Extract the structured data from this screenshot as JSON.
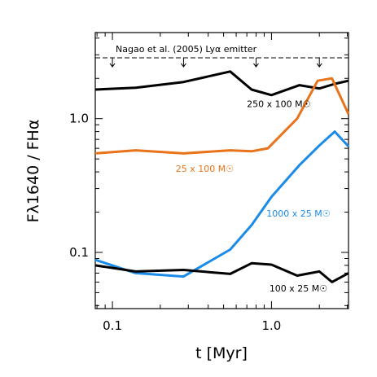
{
  "chart_data": {
    "type": "line",
    "xlabel": "t [Myr]",
    "ylabel": "Fλ1640 / FHα",
    "x_scale": "log",
    "y_scale": "log",
    "xlim": [
      0.078,
      3.05
    ],
    "ylim": [
      0.038,
      4.4
    ],
    "x_ticks": [
      {
        "value": 0.1,
        "label": "0.1"
      },
      {
        "value": 1.0,
        "label": "1.0"
      }
    ],
    "y_ticks": [
      {
        "value": 0.1,
        "label": "0.1"
      },
      {
        "value": 1.0,
        "label": "1.0"
      }
    ],
    "grid": false,
    "series": [
      {
        "name": "250 x 100 M☉",
        "color": "#000000",
        "x": [
          0.078,
          0.14,
          0.28,
          0.55,
          0.75,
          1.0,
          1.5,
          2.0,
          2.5,
          3.05
        ],
        "y": [
          1.65,
          1.7,
          1.88,
          2.25,
          1.65,
          1.5,
          1.78,
          1.68,
          1.82,
          1.92
        ]
      },
      {
        "name": "25 x 100 M☉",
        "color": "#e8731a",
        "x": [
          0.078,
          0.14,
          0.28,
          0.55,
          0.75,
          0.95,
          1.45,
          1.95,
          2.4,
          3.05
        ],
        "y": [
          0.55,
          0.58,
          0.55,
          0.58,
          0.57,
          0.6,
          1.0,
          1.92,
          2.0,
          1.08
        ]
      },
      {
        "name": "1000 x 25 M☉",
        "color": "#1a8ce8",
        "x": [
          0.078,
          0.14,
          0.28,
          0.55,
          0.75,
          1.0,
          1.5,
          2.0,
          2.5,
          3.05
        ],
        "y": [
          0.088,
          0.07,
          0.066,
          0.105,
          0.16,
          0.26,
          0.45,
          0.63,
          0.8,
          0.62
        ]
      },
      {
        "name": "100 x 25 M☉",
        "color": "#000000",
        "x": [
          0.078,
          0.14,
          0.28,
          0.55,
          0.75,
          1.0,
          1.45,
          2.0,
          2.4,
          3.05
        ],
        "y": [
          0.08,
          0.072,
          0.074,
          0.069,
          0.083,
          0.081,
          0.067,
          0.072,
          0.06,
          0.07
        ]
      }
    ],
    "annotations": {
      "limit_label": "Nagao et al. (2005) Lyα emitter",
      "limit_value": 2.85,
      "limit_arrows_x": [
        0.1,
        0.28,
        0.8,
        2.0
      ],
      "labels": [
        {
          "text": "250 x 100 M☉",
          "x": 0.7,
          "y": 1.22,
          "color": "#000000"
        },
        {
          "text": "25 x 100 M☉",
          "x": 0.25,
          "y": 0.4,
          "color": "#e8731a"
        },
        {
          "text": "1000 x 25 M☉",
          "x": 0.93,
          "y": 0.185,
          "color": "#1a8ce8"
        },
        {
          "text": "100 x 25 M☉",
          "x": 0.97,
          "y": 0.051,
          "color": "#000000"
        }
      ]
    }
  }
}
